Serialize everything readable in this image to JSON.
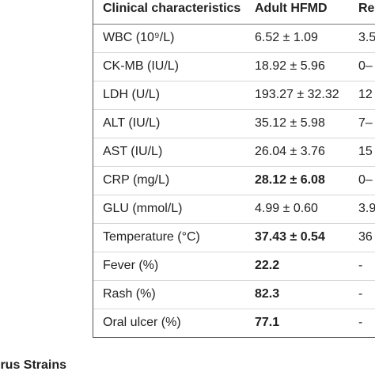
{
  "table": {
    "headers": [
      "Clinical characteristics",
      "Adult HFMD",
      "Re"
    ],
    "rows": [
      {
        "label": "WBC (10⁹/L)",
        "value": "6.52 ± 1.09",
        "ref": "3.5",
        "bold": false
      },
      {
        "label": "CK-MB (IU/L)",
        "value": "18.92 ± 5.96",
        "ref": "0–",
        "bold": false
      },
      {
        "label": "LDH (U/L)",
        "value": "193.27 ± 32.32",
        "ref": "12",
        "bold": false
      },
      {
        "label": "ALT (IU/L)",
        "value": "35.12 ± 5.98",
        "ref": "7–",
        "bold": false
      },
      {
        "label": "AST (IU/L)",
        "value": "26.04 ± 3.76",
        "ref": "15",
        "bold": false
      },
      {
        "label": "CRP (mg/L)",
        "value": "28.12 ± 6.08",
        "ref": "0–",
        "bold": true
      },
      {
        "label": "GLU (mmol/L)",
        "value": "4.99 ± 0.60",
        "ref": "3.9",
        "bold": false
      },
      {
        "label": "Temperature (°C)",
        "value": "37.43 ± 0.54",
        "ref": "36",
        "bold": true
      },
      {
        "label": "Fever (%)",
        "value": "22.2",
        "ref": "-",
        "bold": true
      },
      {
        "label": "Rash (%)",
        "value": "82.3",
        "ref": "-",
        "bold": true
      },
      {
        "label": "Oral ulcer (%)",
        "value": "77.1",
        "ref": "-",
        "bold": true
      }
    ]
  },
  "caption": "irus Strains"
}
